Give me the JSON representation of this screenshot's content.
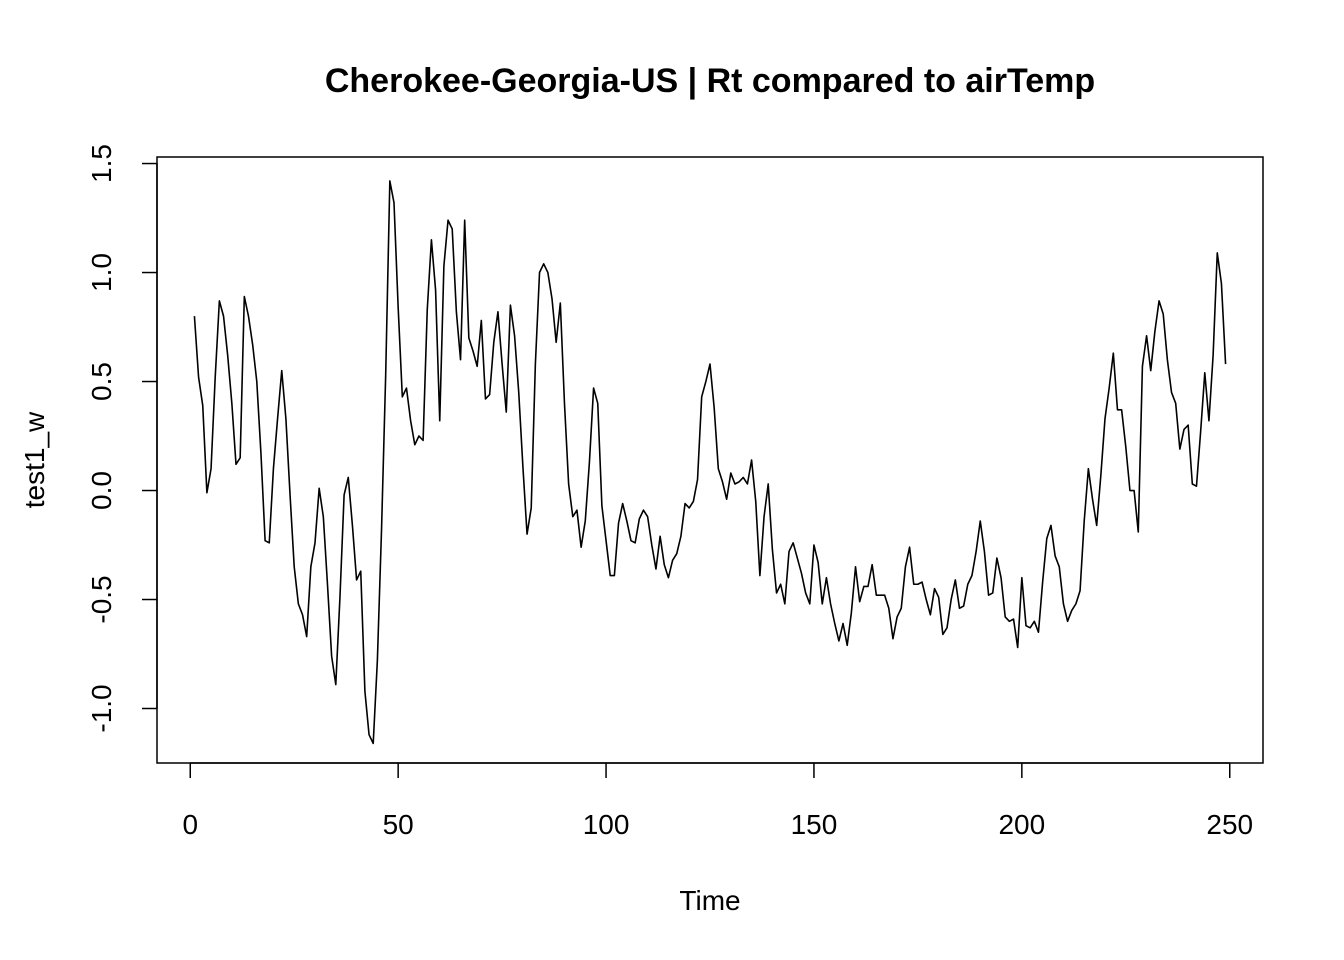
{
  "chart_data": {
    "type": "line",
    "title": "Cherokee-Georgia-US | Rt compared to airTemp",
    "xlabel": "Time",
    "ylabel": "test1_w",
    "xlim": [
      -8,
      258
    ],
    "ylim": [
      -1.25,
      1.53
    ],
    "x_ticks": [
      0,
      50,
      100,
      150,
      200,
      250
    ],
    "x_tick_labels": [
      "0",
      "50",
      "100",
      "150",
      "200",
      "250"
    ],
    "y_ticks": [
      -1.0,
      -0.5,
      0.0,
      0.5,
      1.0,
      1.5
    ],
    "y_tick_labels": [
      "-1.0",
      "-0.5",
      "0.0",
      "0.5",
      "1.0",
      "1.5"
    ],
    "grid": false,
    "legend": "none",
    "line_color": "#000000",
    "series": [
      {
        "values": [
          0.8,
          0.52,
          0.39,
          -0.01,
          0.1,
          0.52,
          0.87,
          0.8,
          0.62,
          0.4,
          0.12,
          0.15,
          0.89,
          0.8,
          0.67,
          0.5,
          0.17,
          -0.23,
          -0.24,
          0.1,
          0.33,
          0.55,
          0.33,
          -0.02,
          -0.35,
          -0.52,
          -0.57,
          -0.67,
          -0.35,
          -0.24,
          0.01,
          -0.12,
          -0.43,
          -0.76,
          -0.89,
          -0.49,
          -0.02,
          0.06,
          -0.16,
          -0.41,
          -0.37,
          -0.92,
          -1.12,
          -1.16,
          -0.78,
          -0.18,
          0.53,
          1.42,
          1.32,
          0.84,
          0.43,
          0.47,
          0.32,
          0.21,
          0.25,
          0.23,
          0.83,
          1.15,
          0.92,
          0.32,
          1.03,
          1.24,
          1.2,
          0.82,
          0.6,
          1.24,
          0.7,
          0.64,
          0.57,
          0.78,
          0.42,
          0.44,
          0.68,
          0.82,
          0.58,
          0.36,
          0.85,
          0.71,
          0.45,
          0.11,
          -0.2,
          -0.08,
          0.58,
          1.0,
          1.04,
          1.0,
          0.88,
          0.68,
          0.86,
          0.4,
          0.03,
          -0.12,
          -0.09,
          -0.26,
          -0.14,
          0.13,
          0.47,
          0.4,
          -0.07,
          -0.23,
          -0.39,
          -0.39,
          -0.15,
          -0.06,
          -0.14,
          -0.23,
          -0.24,
          -0.13,
          -0.09,
          -0.12,
          -0.25,
          -0.36,
          -0.21,
          -0.34,
          -0.4,
          -0.32,
          -0.29,
          -0.21,
          -0.06,
          -0.08,
          -0.05,
          0.05,
          0.43,
          0.5,
          0.58,
          0.38,
          0.1,
          0.04,
          -0.04,
          0.08,
          0.03,
          0.04,
          0.06,
          0.03,
          0.14,
          -0.05,
          -0.39,
          -0.12,
          0.03,
          -0.27,
          -0.47,
          -0.43,
          -0.52,
          -0.28,
          -0.24,
          -0.31,
          -0.38,
          -0.47,
          -0.52,
          -0.25,
          -0.33,
          -0.52,
          -0.4,
          -0.52,
          -0.61,
          -0.69,
          -0.61,
          -0.71,
          -0.56,
          -0.35,
          -0.51,
          -0.44,
          -0.44,
          -0.34,
          -0.48,
          -0.48,
          -0.48,
          -0.54,
          -0.68,
          -0.58,
          -0.54,
          -0.35,
          -0.26,
          -0.43,
          -0.43,
          -0.42,
          -0.5,
          -0.57,
          -0.45,
          -0.49,
          -0.66,
          -0.63,
          -0.5,
          -0.41,
          -0.54,
          -0.53,
          -0.43,
          -0.39,
          -0.28,
          -0.14,
          -0.28,
          -0.48,
          -0.47,
          -0.31,
          -0.4,
          -0.58,
          -0.6,
          -0.59,
          -0.72,
          -0.4,
          -0.62,
          -0.63,
          -0.6,
          -0.65,
          -0.42,
          -0.22,
          -0.16,
          -0.3,
          -0.35,
          -0.52,
          -0.6,
          -0.55,
          -0.52,
          -0.46,
          -0.14,
          0.1,
          -0.04,
          -0.16,
          0.07,
          0.33,
          0.47,
          0.63,
          0.37,
          0.37,
          0.2,
          0.0,
          0.0,
          -0.19,
          0.57,
          0.71,
          0.55,
          0.73,
          0.87,
          0.81,
          0.6,
          0.45,
          0.4,
          0.19,
          0.28,
          0.3,
          0.03,
          0.02,
          0.27,
          0.54,
          0.32,
          0.62,
          1.09,
          0.95,
          0.58
        ]
      }
    ]
  }
}
